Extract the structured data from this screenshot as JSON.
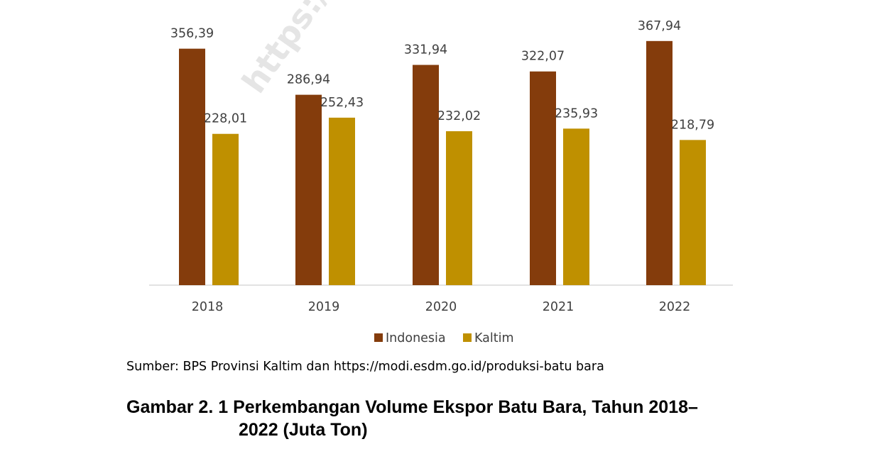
{
  "chart_data": {
    "type": "bar",
    "categories": [
      "2018",
      "2019",
      "2020",
      "2021",
      "2022"
    ],
    "series": [
      {
        "name": "Indonesia",
        "color": "#843C0C",
        "values": [
          356.39,
          286.94,
          331.94,
          322.07,
          367.94
        ],
        "labels": [
          "356,39",
          "286,94",
          "331,94",
          "322,07",
          "367,94"
        ]
      },
      {
        "name": "Kaltim",
        "color": "#BF9000",
        "values": [
          228.01,
          252.43,
          232.02,
          235.93,
          218.79
        ],
        "labels": [
          "228,01",
          "252,43",
          "232,02",
          "235,93",
          "218,79"
        ]
      }
    ],
    "ylim": [
      0,
      400
    ],
    "grid": false,
    "legend": "bottom"
  },
  "watermark": "https://kaltim",
  "source": "Sumber: BPS Provinsi Kaltim dan https://modi.esdm.go.id/produksi-batu bara",
  "caption": {
    "line1": "Gambar 2. 1 Perkembangan Volume Ekspor Batu Bara, Tahun 2018–",
    "line2": "2022 (Juta Ton)"
  }
}
